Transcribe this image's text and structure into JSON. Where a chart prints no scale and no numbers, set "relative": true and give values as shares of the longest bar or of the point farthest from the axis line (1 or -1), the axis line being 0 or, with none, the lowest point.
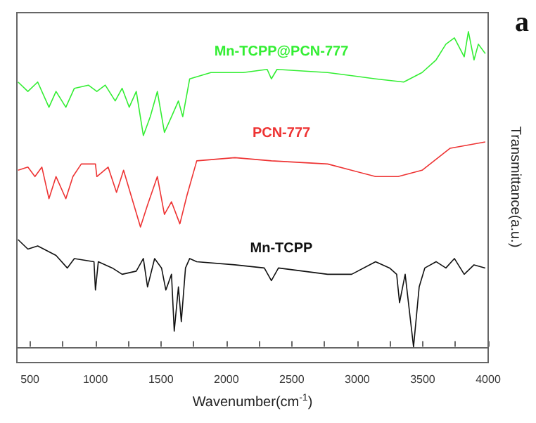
{
  "chart_data": {
    "type": "line",
    "relative": true,
    "xlabel": "Wavenumber(cm$^{-1}$)",
    "ylabel": "Transmittance(a.u.)",
    "annotations": [
      "a"
    ],
    "xlim": [
      400,
      4000
    ],
    "xticks": [
      500,
      {
        "value": 750,
        "label": null
      },
      1000,
      {
        "value": 1250,
        "label": null
      },
      1500,
      {
        "value": 1750,
        "label": null
      },
      2000,
      {
        "value": 2250,
        "label": null
      },
      2500,
      {
        "value": 2750,
        "label": null
      },
      3000,
      {
        "value": 3250,
        "label": null
      },
      3500,
      {
        "value": 3750,
        "label": null
      },
      4000
    ],
    "grid": false,
    "legend": false,
    "marker": "none",
    "line_style": "solid",
    "series": [
      {
        "name": "Mn-TCPP@PCN-777",
        "color": "#33ee33",
        "x": [
          409,
          484,
          559,
          645,
          699,
          774,
          839,
          946,
          1011,
          1075,
          1151,
          1204,
          1258,
          1312,
          1366,
          1419,
          1473,
          1527,
          1581,
          1634,
          1667,
          1720,
          1882,
          2129,
          2312,
          2344,
          2387,
          2774,
          3140,
          3355,
          3495,
          3602,
          3677,
          3742,
          3817,
          3849,
          3892,
          3925,
          3978
        ],
        "values": [
          0.84,
          0.81,
          0.84,
          0.76,
          0.81,
          0.76,
          0.82,
          0.83,
          0.81,
          0.83,
          0.78,
          0.82,
          0.76,
          0.81,
          0.67,
          0.73,
          0.81,
          0.68,
          0.73,
          0.78,
          0.73,
          0.85,
          0.87,
          0.87,
          0.88,
          0.85,
          0.88,
          0.87,
          0.85,
          0.84,
          0.87,
          0.91,
          0.96,
          0.98,
          0.92,
          1.0,
          0.91,
          0.96,
          0.93
        ]
      },
      {
        "name": "PCN-777",
        "color": "#ee3333",
        "x": [
          409,
          484,
          538,
          591,
          645,
          699,
          774,
          828,
          892,
          1000,
          1011,
          1097,
          1161,
          1215,
          1344,
          1398,
          1473,
          1527,
          1581,
          1645,
          1699,
          1774,
          2065,
          2344,
          2774,
          3140,
          3312,
          3495,
          3710,
          3978
        ],
        "values": [
          0.56,
          0.57,
          0.54,
          0.57,
          0.47,
          0.54,
          0.47,
          0.54,
          0.58,
          0.58,
          0.54,
          0.57,
          0.49,
          0.56,
          0.38,
          0.45,
          0.54,
          0.42,
          0.46,
          0.39,
          0.48,
          0.59,
          0.6,
          0.59,
          0.58,
          0.54,
          0.54,
          0.56,
          0.63,
          0.65
        ]
      },
      {
        "name": "Mn-TCPP",
        "color": "#111111",
        "x": [
          409,
          484,
          559,
          699,
          785,
          839,
          989,
          1000,
          1022,
          1129,
          1204,
          1312,
          1366,
          1398,
          1452,
          1505,
          1538,
          1581,
          1602,
          1634,
          1656,
          1688,
          1720,
          1774,
          2065,
          2290,
          2344,
          2398,
          2774,
          2957,
          3140,
          3247,
          3301,
          3323,
          3366,
          3430,
          3473,
          3516,
          3602,
          3677,
          3742,
          3817,
          3892,
          3978
        ],
        "values": [
          0.34,
          0.31,
          0.32,
          0.29,
          0.25,
          0.28,
          0.27,
          0.18,
          0.27,
          0.25,
          0.23,
          0.24,
          0.28,
          0.19,
          0.28,
          0.25,
          0.18,
          0.23,
          0.05,
          0.19,
          0.08,
          0.25,
          0.28,
          0.27,
          0.26,
          0.25,
          0.21,
          0.25,
          0.23,
          0.23,
          0.27,
          0.25,
          0.23,
          0.14,
          0.23,
          0.0,
          0.19,
          0.25,
          0.27,
          0.25,
          0.28,
          0.23,
          0.26,
          0.25
        ]
      }
    ]
  }
}
